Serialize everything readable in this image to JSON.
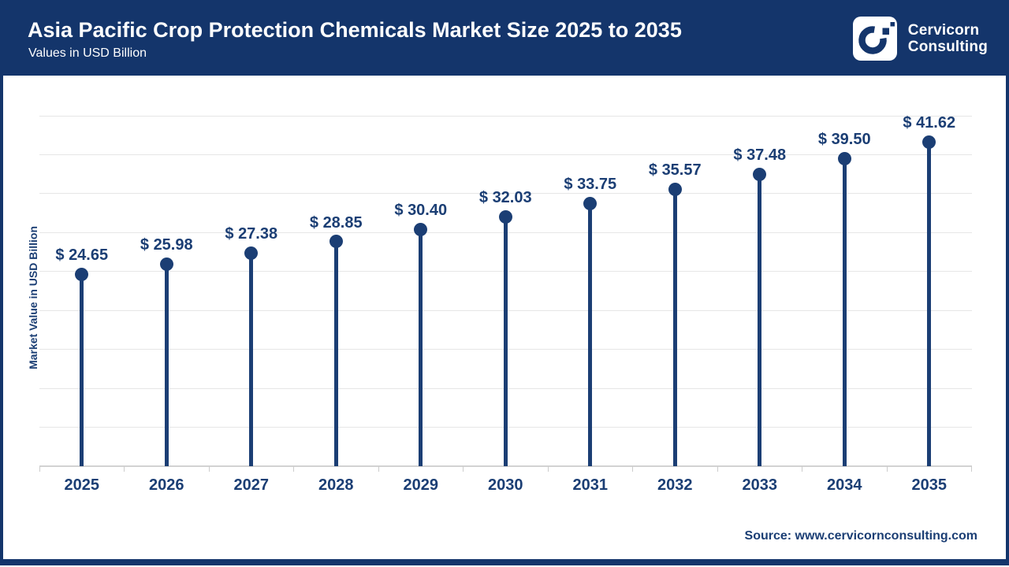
{
  "header": {
    "title": "Asia Pacific Crop Protection Chemicals Market Size 2025 to 2035",
    "subtitle": "Values in USD Billion",
    "brand": {
      "line1": "Cervicorn",
      "line2": "Consulting",
      "logo_icon": "cervicorn-c-ring-with-pixels"
    }
  },
  "chart_data": {
    "type": "bar",
    "variant": "lollipop",
    "title": "Asia Pacific Crop Protection Chemicals Market Size 2025 to 2035",
    "subtitle": "Values in USD Billion",
    "categories": [
      "2025",
      "2026",
      "2027",
      "2028",
      "2029",
      "2030",
      "2031",
      "2032",
      "2033",
      "2034",
      "2035"
    ],
    "values": [
      24.65,
      25.98,
      27.38,
      28.85,
      30.4,
      32.03,
      33.75,
      35.57,
      37.48,
      39.5,
      41.62
    ],
    "value_labels": [
      "$ 24.65",
      "$ 25.98",
      "$ 27.38",
      "$ 28.85",
      "$ 30.40",
      "$ 32.03",
      "$ 33.75",
      "$ 35.57",
      "$ 37.48",
      "$ 39.50",
      "$ 41.62"
    ],
    "xlabel": "",
    "ylabel": "Market Value in USD Billion",
    "ylim": [
      0,
      45
    ],
    "grid_step": 5,
    "grid": "horizontal",
    "y_tick_labels_visible": false,
    "legend": null
  },
  "footer": {
    "source": "Source: www.cervicornconsulting.com"
  },
  "colors": {
    "header_bg": "#14356B",
    "accent": "#1B3E74",
    "grid": "#E6E6E6",
    "axis": "#D2D2D2",
    "tick": "#CCCCCC",
    "text_on_dark": "#FFFFFF"
  }
}
